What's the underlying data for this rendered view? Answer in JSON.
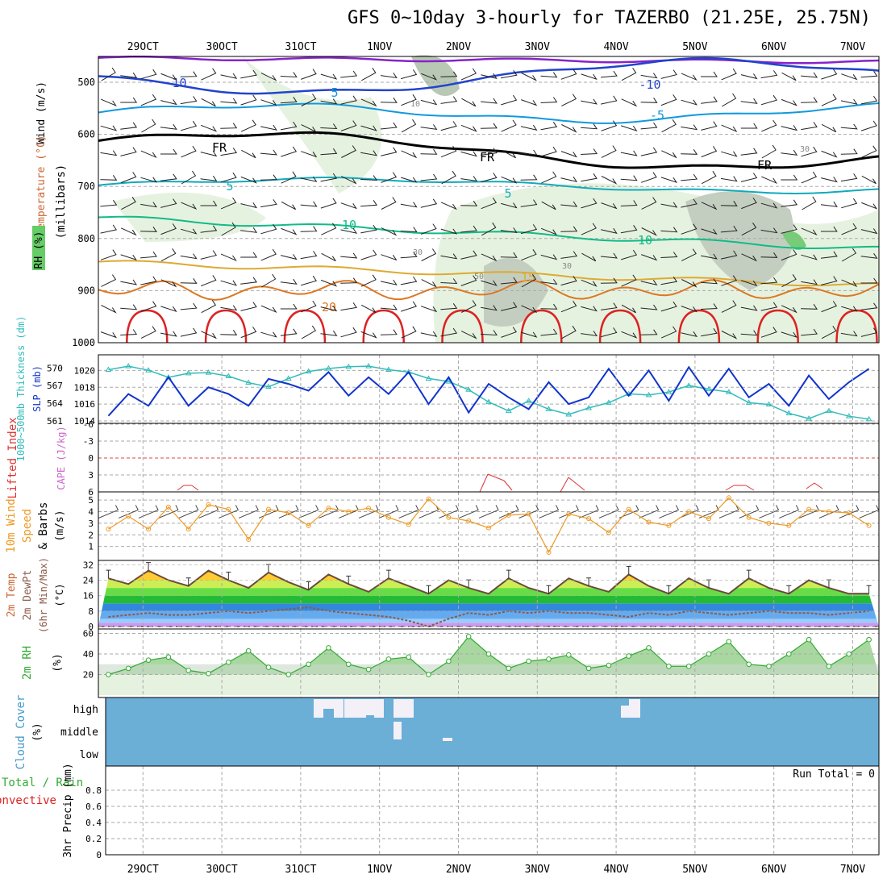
{
  "title": "GFS 0~10day 3-hourly for TAZERBO (21.25E, 25.75N)",
  "dates": [
    "29OCT",
    "30OCT",
    "31OCT",
    "1NOV",
    "2NOV",
    "3NOV",
    "4NOV",
    "5NOV",
    "6NOV",
    "7NOV"
  ],
  "colors": {
    "grid": "#aaaaaa",
    "temp_minus10": "#2244cc",
    "temp_minus5": "#1199dd",
    "temp_5": "#11aabb",
    "temp_10": "#11bb88",
    "temp_15": "#ddaa33",
    "temp_20": "#dd7722",
    "temp_25": "#dd2222",
    "freezing": "#000000",
    "slp": "#1133cc",
    "thickness": "#33bbbb",
    "lifted_index": "#dd3333",
    "wind_speed": "#ee9922",
    "rh": "#33aa33",
    "cloud": "#6baed6",
    "cloud_gap": "#f4f0f8",
    "precip_total": "#33aa33",
    "precip_conv": "#dd2222"
  },
  "panels": {
    "upper": {
      "axis_label": "(millibars)",
      "legend_wind": "Wind (m/s)",
      "legend_temp": "Temperature (°C)",
      "legend_rh": "RH (%)",
      "ticks": [
        "500",
        "600",
        "700",
        "800",
        "900",
        "1000"
      ],
      "contour_labels": [
        "-10",
        "5",
        "10",
        "FR",
        "FR",
        "FR",
        "-10",
        "-5",
        "5",
        "5",
        "10",
        "10",
        "15",
        "20",
        "30",
        "30",
        "30",
        "50"
      ]
    },
    "slp": {
      "label_thickness": "1000~500mb Thickness (dm)",
      "label_slp": "SLP (mb)",
      "left_ticks": [
        "570",
        "567",
        "564",
        "561"
      ],
      "right_ticks": [
        "1020",
        "1018",
        "1016",
        "1014"
      ]
    },
    "li": {
      "label_li": "Lifted Index",
      "label_cape": "CAPE (J/kg)",
      "ticks": [
        "-6",
        "-3",
        "0",
        "3",
        "6"
      ]
    },
    "wind10": {
      "label1": "10m Wind",
      "label2": "Speed",
      "label3": "& Barbs",
      "unit": "(m/s)",
      "ticks": [
        "5",
        "4",
        "3",
        "2",
        "1"
      ]
    },
    "temp2m": {
      "label1": "2m Temp",
      "label2": "2m DewPt",
      "label3": "(6hr Min/Max)",
      "unit": "(°C)",
      "ticks": [
        "32",
        "24",
        "16",
        "8",
        "0"
      ]
    },
    "rh2m": {
      "label": "2m RH",
      "unit": "(%)",
      "ticks": [
        "60",
        "40",
        "20"
      ]
    },
    "cloud": {
      "label": "Cloud Cover",
      "unit": "(%)",
      "levels": [
        "high",
        "middle",
        "low"
      ]
    },
    "precip": {
      "label_total": "Total / Rain",
      "label_conv": "Convective",
      "axis_label": "3hr Precip (mm)",
      "run_total": "Run Total = 0",
      "ticks": [
        "0.8",
        "0.6",
        "0.4",
        "0.2",
        "0"
      ]
    }
  },
  "chart_data": [
    {
      "type": "line",
      "title": "1000~500mb Thickness (dm) / SLP (mb)",
      "x": [
        "28OCT18",
        "29OCT00",
        "29OCT06",
        "29OCT12",
        "29OCT18",
        "30OCT00",
        "30OCT06",
        "30OCT12",
        "30OCT18",
        "31OCT00",
        "31OCT06",
        "31OCT12",
        "31OCT18",
        "1NOV00",
        "1NOV06",
        "1NOV12",
        "1NOV18",
        "2NOV00",
        "2NOV06",
        "2NOV12",
        "2NOV18",
        "3NOV00",
        "3NOV06",
        "3NOV12",
        "3NOV18",
        "4NOV00",
        "4NOV06",
        "4NOV12",
        "4NOV18",
        "5NOV00",
        "5NOV06",
        "5NOV12",
        "5NOV18",
        "6NOV00",
        "6NOV06",
        "6NOV12",
        "6NOV18",
        "7NOV00",
        "7NOV06"
      ],
      "series": [
        {
          "name": "SLP (mb)",
          "values": [
            1014.6,
            1017.2,
            1015.8,
            1019.2,
            1015.8,
            1018.0,
            1017.2,
            1015.8,
            1019.0,
            1018.4,
            1017.6,
            1019.8,
            1017.0,
            1019.2,
            1017.2,
            1019.8,
            1016.0,
            1019.2,
            1015.0,
            1018.4,
            1016.8,
            1015.4,
            1018.6,
            1016.0,
            1016.8,
            1020.2,
            1017.0,
            1020.0,
            1016.4,
            1020.4,
            1017.0,
            1020.2,
            1016.8,
            1018.4,
            1015.8,
            1019.4,
            1016.6,
            1018.6,
            1020.2
          ]
        },
        {
          "name": "1000~500mb Thickness (dm)",
          "values": [
            569.7,
            570.3,
            569.6,
            568.4,
            569.1,
            569.2,
            568.6,
            567.5,
            566.8,
            568.2,
            569.4,
            569.9,
            570.2,
            570.3,
            569.7,
            569.3,
            568.2,
            567.7,
            566.3,
            564.2,
            562.7,
            564.4,
            563.0,
            562.1,
            563.2,
            564.1,
            565.6,
            565.4,
            565.9,
            567.0,
            566.4,
            565.9,
            564.1,
            563.8,
            562.3,
            561.4,
            562.7,
            561.8,
            561.3
          ]
        }
      ],
      "ylim_slp": [
        1014,
        1021
      ],
      "ylim_thickness": [
        561,
        571
      ]
    },
    {
      "type": "line",
      "title": "10m Wind Speed (m/s)",
      "x": [
        "28OCT18",
        "29OCT00",
        "29OCT06",
        "29OCT12",
        "29OCT18",
        "30OCT00",
        "30OCT06",
        "30OCT12",
        "30OCT18",
        "31OCT00",
        "31OCT06",
        "31OCT12",
        "31OCT18",
        "1NOV00",
        "1NOV06",
        "1NOV12",
        "1NOV18",
        "2NOV00",
        "2NOV06",
        "2NOV12",
        "2NOV18",
        "3NOV00",
        "3NOV06",
        "3NOV12",
        "3NOV18",
        "4NOV00",
        "4NOV06",
        "4NOV12",
        "4NOV18",
        "5NOV00",
        "5NOV06",
        "5NOV12",
        "5NOV18",
        "6NOV00",
        "6NOV06",
        "6NOV12",
        "6NOV18",
        "7NOV00",
        "7NOV06"
      ],
      "series": [
        {
          "name": "10m Wind Speed",
          "values": [
            2.5,
            3.6,
            2.5,
            4.4,
            2.5,
            4.6,
            4.2,
            1.6,
            4.2,
            3.9,
            2.8,
            4.3,
            4.0,
            4.3,
            3.5,
            2.9,
            5.1,
            3.5,
            3.2,
            2.6,
            3.7,
            3.8,
            0.5,
            3.8,
            3.4,
            2.2,
            4.2,
            3.1,
            2.8,
            4.0,
            3.4,
            5.2,
            3.5,
            3.0,
            2.8,
            4.2,
            4.0,
            3.9,
            2.8
          ]
        }
      ],
      "ylim": [
        0,
        5.5
      ]
    },
    {
      "type": "area",
      "title": "2m Temp / 2m DewPt (°C)",
      "x": [
        "28OCT18",
        "29OCT00",
        "29OCT06",
        "29OCT12",
        "29OCT18",
        "30OCT00",
        "30OCT06",
        "30OCT12",
        "30OCT18",
        "31OCT00",
        "31OCT06",
        "31OCT12",
        "31OCT18",
        "1NOV00",
        "1NOV06",
        "1NOV12",
        "1NOV18",
        "2NOV00",
        "2NOV06",
        "2NOV12",
        "2NOV18",
        "3NOV00",
        "3NOV06",
        "3NOV12",
        "3NOV18",
        "4NOV00",
        "4NOV06",
        "4NOV12",
        "4NOV18",
        "5NOV00",
        "5NOV06",
        "5NOV12",
        "5NOV18",
        "6NOV00",
        "6NOV06",
        "6NOV12",
        "6NOV18",
        "7NOV00",
        "7NOV06"
      ],
      "series": [
        {
          "name": "2m Temp",
          "values": [
            25,
            22,
            29,
            24,
            21,
            29,
            24,
            20,
            28,
            23,
            19,
            27,
            22,
            18,
            25,
            21,
            17,
            24,
            20,
            17,
            25,
            20,
            17,
            25,
            21,
            18,
            27,
            21,
            17,
            25,
            20,
            17,
            25,
            20,
            17,
            24,
            20,
            17,
            17
          ]
        },
        {
          "name": "2m DewPt",
          "values": [
            5,
            6,
            7,
            6,
            6,
            7,
            8,
            7,
            8,
            9,
            10,
            8,
            7,
            6,
            5,
            3,
            0,
            4,
            7,
            6,
            8,
            7,
            8,
            7,
            7,
            6,
            5,
            7,
            6,
            8,
            7,
            6,
            7,
            8,
            7,
            7,
            6,
            7,
            8
          ]
        }
      ],
      "ylim": [
        0,
        33
      ]
    },
    {
      "type": "area",
      "title": "2m RH (%)",
      "x": [
        "28OCT18",
        "29OCT00",
        "29OCT06",
        "29OCT12",
        "29OCT18",
        "30OCT00",
        "30OCT06",
        "30OCT12",
        "30OCT18",
        "31OCT00",
        "31OCT06",
        "31OCT12",
        "31OCT18",
        "1NOV00",
        "1NOV06",
        "1NOV12",
        "1NOV18",
        "2NOV00",
        "2NOV06",
        "2NOV12",
        "2NOV18",
        "3NOV00",
        "3NOV06",
        "3NOV12",
        "3NOV18",
        "4NOV00",
        "4NOV06",
        "4NOV12",
        "4NOV18",
        "5NOV00",
        "5NOV06",
        "5NOV12",
        "5NOV18",
        "6NOV00",
        "6NOV06",
        "6NOV12",
        "6NOV18",
        "7NOV00",
        "7NOV06"
      ],
      "series": [
        {
          "name": "2m RH",
          "values": [
            20,
            26,
            34,
            37,
            24,
            21,
            32,
            43,
            27,
            20,
            30,
            46,
            30,
            25,
            35,
            37,
            20,
            33,
            57,
            40,
            26,
            33,
            35,
            39,
            26,
            29,
            38,
            46,
            28,
            28,
            40,
            52,
            30,
            28,
            40,
            54,
            28,
            40,
            54
          ]
        }
      ],
      "ylim": [
        0,
        62
      ]
    },
    {
      "type": "line",
      "title": "3hr Precip (mm)",
      "categories": [
        "Total / Rain",
        "Convective"
      ],
      "values": [
        0,
        0
      ],
      "ylim": [
        0,
        1
      ]
    }
  ]
}
